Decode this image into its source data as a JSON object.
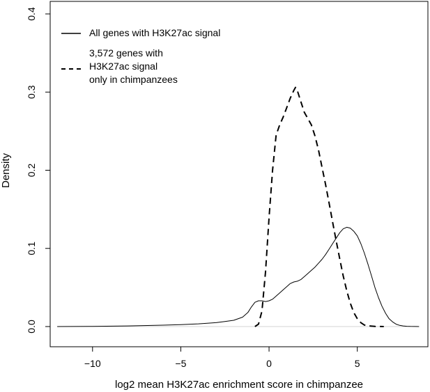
{
  "chart_data": {
    "type": "line",
    "xlabel": "log2 mean H3K27ac enrichment score in chimpanzee",
    "ylabel": "Density",
    "xlim": [
      -12.4,
      9.0
    ],
    "ylim": [
      0.0,
      0.4
    ],
    "x_ticks": [
      -10,
      -5,
      0,
      5
    ],
    "x_tick_labels": [
      "−10",
      "−5",
      "0",
      "5"
    ],
    "y_ticks": [
      0.0,
      0.1,
      0.2,
      0.3,
      0.4
    ],
    "y_tick_labels": [
      "0.0",
      "0.1",
      "0.2",
      "0.3",
      "0.4"
    ],
    "grid": false,
    "legend_position": "top-left",
    "reference_line_y": 0,
    "series": [
      {
        "name": "All genes with H3K27ac signal",
        "legend_lines": [
          "All genes with H3K27ac signal"
        ],
        "line_style": "solid",
        "x": [
          -12.0,
          -10.0,
          -8.0,
          -6.0,
          -5.0,
          -4.0,
          -3.0,
          -2.5,
          -2.0,
          -1.5,
          -1.2,
          -1.0,
          -0.8,
          -0.6,
          -0.4,
          -0.2,
          0.0,
          0.2,
          0.4,
          0.6,
          0.8,
          1.0,
          1.2,
          1.4,
          1.6,
          1.8,
          2.0,
          2.2,
          2.4,
          2.6,
          2.8,
          3.0,
          3.2,
          3.4,
          3.6,
          3.8,
          4.0,
          4.2,
          4.4,
          4.6,
          4.8,
          5.0,
          5.2,
          5.4,
          5.6,
          5.8,
          6.0,
          6.2,
          6.4,
          6.6,
          6.8,
          7.0,
          7.2,
          7.4,
          7.6,
          7.8,
          8.0,
          8.5
        ],
        "y": [
          0.0,
          0.0003,
          0.0008,
          0.0018,
          0.0025,
          0.0035,
          0.005,
          0.0065,
          0.008,
          0.012,
          0.018,
          0.025,
          0.031,
          0.033,
          0.033,
          0.032,
          0.033,
          0.035,
          0.039,
          0.043,
          0.047,
          0.051,
          0.055,
          0.057,
          0.058,
          0.06,
          0.064,
          0.068,
          0.072,
          0.076,
          0.081,
          0.086,
          0.092,
          0.099,
          0.106,
          0.113,
          0.12,
          0.125,
          0.127,
          0.126,
          0.122,
          0.116,
          0.106,
          0.094,
          0.08,
          0.065,
          0.05,
          0.037,
          0.026,
          0.017,
          0.01,
          0.006,
          0.003,
          0.0015,
          0.0008,
          0.0004,
          0.0002,
          0.0
        ]
      },
      {
        "name": "3,572 genes with H3K27ac signal only in chimpanzees",
        "legend_lines": [
          "3,572 genes with",
          "H3K27ac signal",
          "only in chimpanzees"
        ],
        "line_style": "dashed",
        "x": [
          -0.8,
          -0.6,
          -0.4,
          -0.2,
          0.0,
          0.2,
          0.4,
          0.6,
          0.8,
          1.0,
          1.2,
          1.4,
          1.5,
          1.6,
          1.8,
          2.0,
          2.2,
          2.4,
          2.6,
          2.8,
          3.0,
          3.2,
          3.4,
          3.6,
          3.8,
          4.0,
          4.2,
          4.4,
          4.6,
          4.8,
          5.0,
          5.2,
          5.4,
          5.6,
          5.8,
          6.0,
          6.5
        ],
        "y": [
          0.0,
          0.003,
          0.02,
          0.07,
          0.14,
          0.2,
          0.245,
          0.258,
          0.268,
          0.28,
          0.292,
          0.302,
          0.306,
          0.302,
          0.288,
          0.274,
          0.266,
          0.258,
          0.244,
          0.226,
          0.204,
          0.182,
          0.158,
          0.134,
          0.11,
          0.087,
          0.065,
          0.046,
          0.03,
          0.018,
          0.01,
          0.005,
          0.002,
          0.001,
          0.0005,
          0.0002,
          0.0
        ]
      }
    ]
  }
}
